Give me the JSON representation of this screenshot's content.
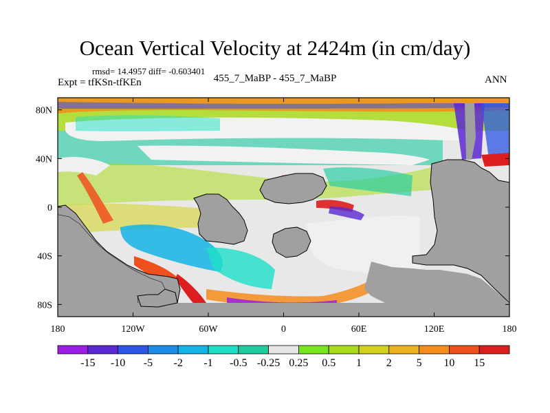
{
  "chart_data": {
    "type": "heatmap",
    "title": "Ocean Vertical Velocity at 2424m (in cm/day)",
    "stats_line": "rmsd= 14.4957 diff= -0.603401",
    "experiment_label": "Expt = tfKSn-tfKEn",
    "cases_label": "455_7_MaBP - 455_7_MaBP",
    "season_label": "ANN",
    "xlim": [
      -180,
      180
    ],
    "ylim": [
      -90,
      90
    ],
    "x_ticks": [
      {
        "value": -180,
        "label": "180"
      },
      {
        "value": -120,
        "label": "120W"
      },
      {
        "value": -60,
        "label": "60W"
      },
      {
        "value": 0,
        "label": "0"
      },
      {
        "value": 60,
        "label": "60E"
      },
      {
        "value": 120,
        "label": "120E"
      },
      {
        "value": 180,
        "label": "180"
      }
    ],
    "y_ticks": [
      {
        "value": 80,
        "label": "80N"
      },
      {
        "value": 40,
        "label": "40N"
      },
      {
        "value": 0,
        "label": "0"
      },
      {
        "value": -40,
        "label": "40S"
      },
      {
        "value": -80,
        "label": "80S"
      }
    ],
    "colorbar": {
      "levels": [
        "-15",
        "-10",
        "-5",
        "-2",
        "-1",
        "-0.5",
        "-0.25",
        "0.25",
        "0.5",
        "1",
        "2",
        "5",
        "10",
        "15"
      ],
      "colors": [
        "#9a1ee6",
        "#5a28d2",
        "#2d55e6",
        "#1e8ce6",
        "#14b4e6",
        "#1ee0c8",
        "#1ecca0",
        "#e6e6e6",
        "#78e61e",
        "#aadc1e",
        "#d2d21e",
        "#ebb41e",
        "#f58c1e",
        "#f0501e",
        "#dc1e1e"
      ]
    },
    "land_color": "#a0a0a0"
  }
}
